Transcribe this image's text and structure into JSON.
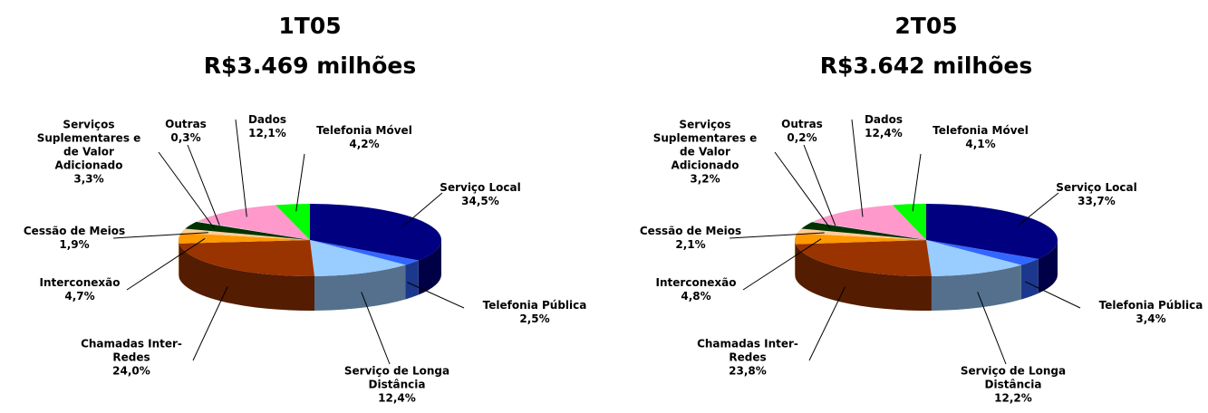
{
  "chart_data": [
    {
      "type": "pie3d",
      "title": "1T05",
      "subtitle": "R$3.469 milhões",
      "categories": [
        "Serviço Local",
        "Telefonia Pública",
        "Serviço de Longa Distância",
        "Chamadas Inter-Redes",
        "Interconexão",
        "Cessão de Meios",
        "Serviços Suplementares e de Valor Adicionado",
        "Outras",
        "Dados",
        "Telefonia Móvel"
      ],
      "values": [
        34.5,
        2.5,
        12.4,
        24.0,
        4.7,
        1.9,
        3.3,
        0.3,
        12.1,
        4.2
      ],
      "value_labels": [
        "34,5%",
        "2,5%",
        "12,4%",
        "24,0%",
        "4,7%",
        "1,9%",
        "3,3%",
        "0,3%",
        "12,1%",
        "4,2%"
      ],
      "colors": [
        "#000080",
        "#3366ff",
        "#99ccff",
        "#993300",
        "#ff9900",
        "#ffcc99",
        "#003300",
        "#e0e0e0",
        "#ff99cc",
        "#00ff00"
      ]
    },
    {
      "type": "pie3d",
      "title": "2T05",
      "subtitle": "R$3.642 milhões",
      "categories": [
        "Serviço Local",
        "Telefonia Pública",
        "Serviço de Longa Distância",
        "Chamadas Inter-Redes",
        "Interconexão",
        "Cessão de Meios",
        "Serviços Suplementares e de Valor Adicionado",
        "Outras",
        "Dados",
        "Telefonia Móvel"
      ],
      "values": [
        33.7,
        3.4,
        12.2,
        23.8,
        4.8,
        2.1,
        3.2,
        0.2,
        12.4,
        4.1
      ],
      "value_labels": [
        "33,7%",
        "3,4%",
        "12,2%",
        "23,8%",
        "4,8%",
        "2,1%",
        "3,2%",
        "0,2%",
        "12,4%",
        "4,1%"
      ],
      "colors": [
        "#000080",
        "#3366ff",
        "#99ccff",
        "#993300",
        "#ff9900",
        "#ffcc99",
        "#003300",
        "#e0e0e0",
        "#ff99cc",
        "#00ff00"
      ]
    }
  ]
}
